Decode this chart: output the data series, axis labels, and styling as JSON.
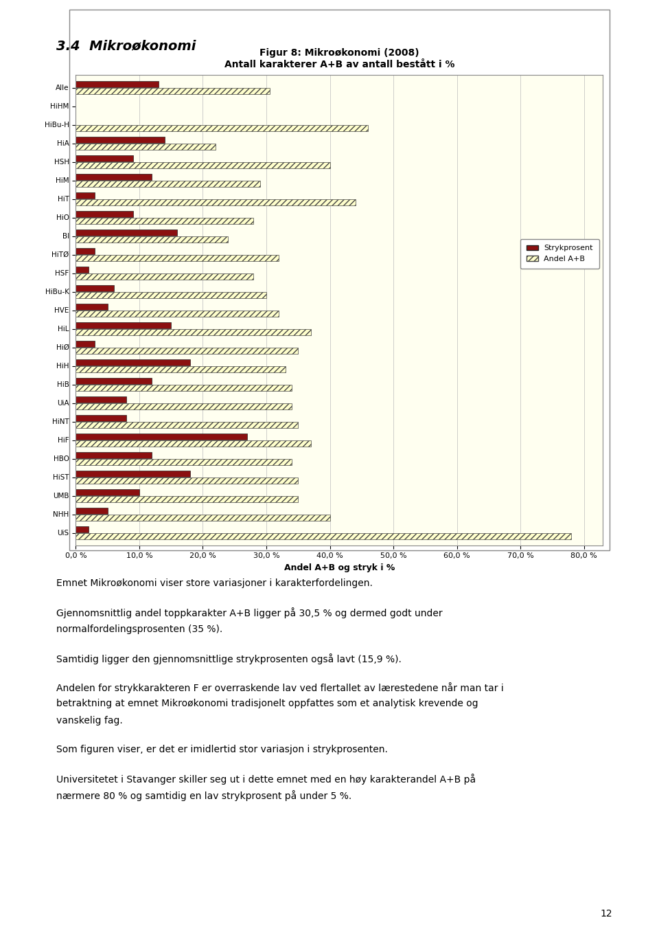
{
  "title_line1": "Figur 8: Mikroøkonomi (2008)",
  "title_line2": "Antall karakterer A+B av antall bestått i %",
  "section_title": "3.4  Mikroøkonomi",
  "xlabel": "Andel A+B og stryk i %",
  "categories": [
    "Alle",
    "HiHM",
    "HiBu-H",
    "HiA",
    "HSH",
    "HiM",
    "HiT",
    "HiO",
    "BI",
    "HiTØ",
    "HSF",
    "HiBu-K",
    "HVE",
    "HiL",
    "HiØ",
    "HiH",
    "HiB",
    "UiA",
    "HiNT",
    "HiF",
    "HBO",
    "HiST",
    "UMB",
    "NHH",
    "UiS"
  ],
  "stryk": [
    13.0,
    0.0,
    0.0,
    14.0,
    9.0,
    12.0,
    3.0,
    9.0,
    16.0,
    3.0,
    2.0,
    6.0,
    5.0,
    15.0,
    3.0,
    18.0,
    12.0,
    8.0,
    8.0,
    27.0,
    12.0,
    18.0,
    10.0,
    5.0,
    2.0
  ],
  "andel_ab": [
    30.5,
    0.0,
    46.0,
    22.0,
    40.0,
    29.0,
    44.0,
    28.0,
    24.0,
    32.0,
    28.0,
    30.0,
    32.0,
    37.0,
    35.0,
    33.0,
    34.0,
    34.0,
    35.0,
    37.0,
    34.0,
    35.0,
    35.0,
    40.0,
    78.0
  ],
  "stryk_color": "#8B1010",
  "andel_face": "#ffffcc",
  "andel_edge": "#444444",
  "chart_bg": "#fffff0",
  "xticks": [
    0.0,
    10.0,
    20.0,
    30.0,
    40.0,
    50.0,
    60.0,
    70.0,
    80.0
  ],
  "xtick_labels": [
    "0,0 %",
    "10,0 %",
    "20,0 %",
    "30,0 %",
    "40,0 %",
    "50,0 %",
    "60,0 %",
    "70,0 %",
    "80,0 %"
  ],
  "xlim": [
    0,
    83
  ],
  "legend_stryk": "Strykprosent",
  "legend_andel": "Andel A+B",
  "page_number": "12"
}
